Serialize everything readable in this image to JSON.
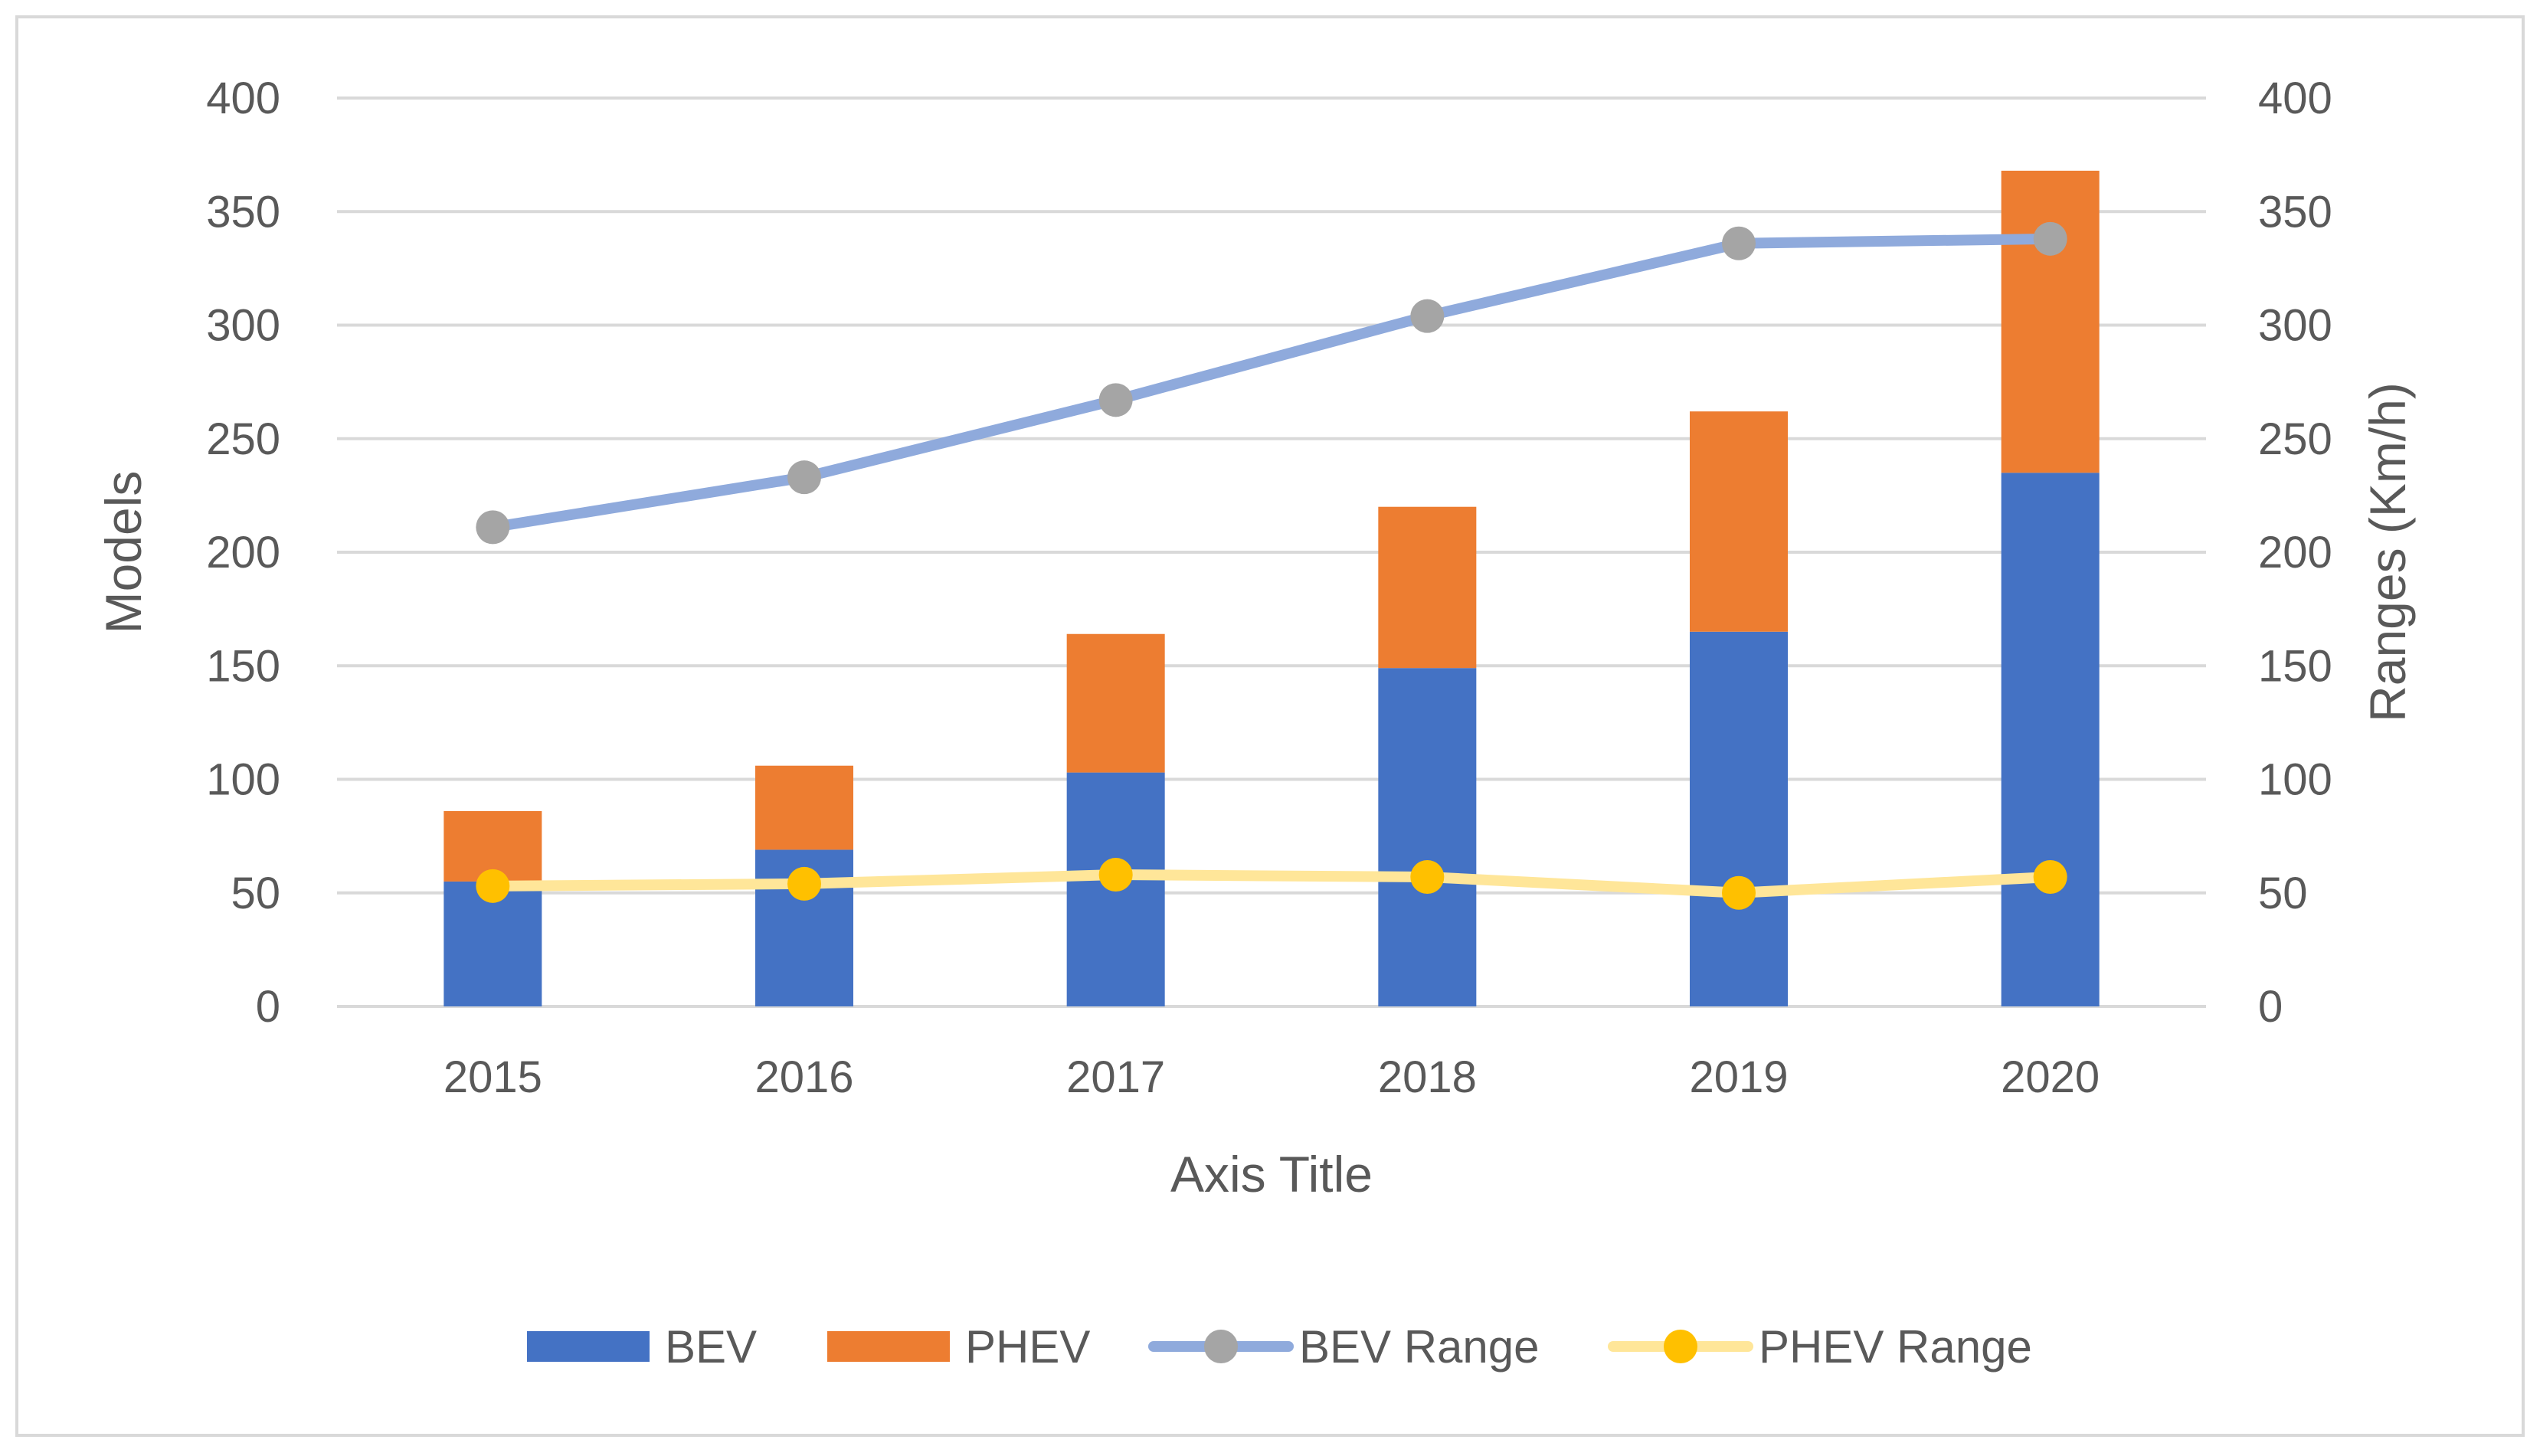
{
  "chart_data": {
    "type": "bar",
    "stacked": true,
    "categories": [
      "2015",
      "2016",
      "2017",
      "2018",
      "2019",
      "2020"
    ],
    "series": [
      {
        "name": "BEV",
        "kind": "bar",
        "axis": "left",
        "color": "#4472C4",
        "values": [
          55,
          69,
          103,
          149,
          165,
          235
        ]
      },
      {
        "name": "PHEV",
        "kind": "bar",
        "axis": "left",
        "color": "#ED7D31",
        "values": [
          31,
          37,
          61,
          71,
          97,
          133
        ]
      },
      {
        "name": "BEV Range",
        "kind": "line",
        "axis": "right",
        "line_color": "#8FAADC",
        "marker_color": "#A5A5A5",
        "values": [
          211,
          233,
          267,
          304,
          336,
          338
        ]
      },
      {
        "name": "PHEV Range",
        "kind": "line",
        "axis": "right",
        "line_color": "#FFE699",
        "marker_color": "#FFC000",
        "values": [
          53,
          54,
          58,
          57,
          50,
          57
        ]
      }
    ],
    "xlabel": "Axis Title",
    "ylabel": "Models",
    "y2label": "Ranges (Km/h)",
    "ylim": [
      0,
      400
    ],
    "y2lim": [
      0,
      400
    ],
    "yticks": [
      "0",
      "50",
      "100",
      "150",
      "200",
      "250",
      "300",
      "350",
      "400"
    ],
    "y2ticks": [
      "0",
      "50",
      "100",
      "150",
      "200",
      "250",
      "300",
      "350",
      "400"
    ],
    "grid": true,
    "legend_position": "bottom",
    "colors": {
      "gridline": "#D9D9D9",
      "axis_text": "#595959",
      "frame": "#D9D9D9"
    }
  }
}
